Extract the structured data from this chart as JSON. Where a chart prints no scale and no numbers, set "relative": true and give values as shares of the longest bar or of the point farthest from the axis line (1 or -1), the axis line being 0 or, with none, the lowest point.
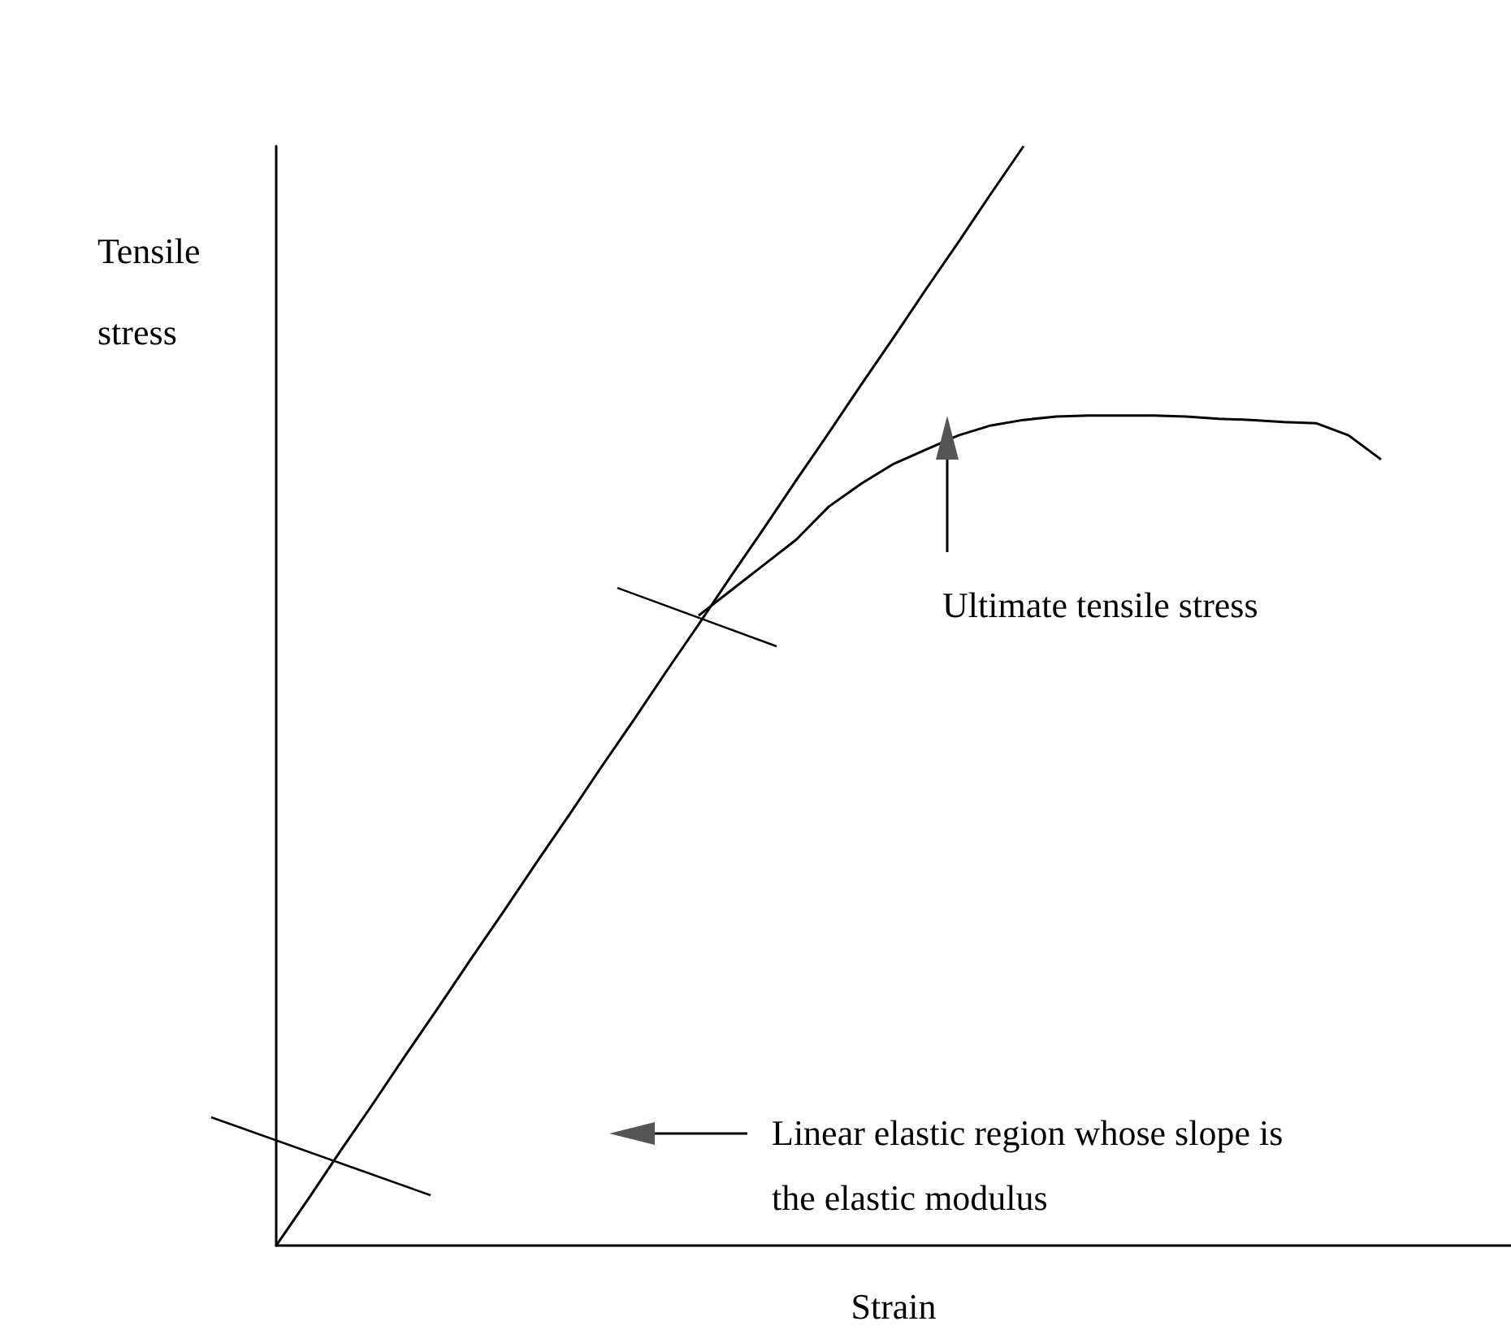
{
  "chart_data": {
    "type": "line",
    "relative": true,
    "xlabel": "Strain",
    "ylabel": "Tensile stress",
    "annotations": [
      "Ultimate tensile stress",
      "Linear elastic region whose slope is the elastic modulus"
    ],
    "categories": [
      null,
      null,
      null,
      null,
      null,
      null,
      null,
      null,
      null,
      null,
      null,
      null,
      null,
      null,
      null,
      null,
      null,
      null,
      null,
      null,
      null,
      null,
      null,
      null,
      null,
      null,
      null,
      null,
      null,
      null,
      null,
      null,
      null,
      null,
      null,
      null,
      null,
      null,
      null
    ],
    "marker": "none",
    "line_style": "solid",
    "grid": false,
    "tick_labels": false,
    "series": [
      {
        "color": "#000000",
        "values": [
          0,
          0.043,
          0.087,
          0.13,
          0.174,
          0.217,
          0.261,
          0.304,
          0.348,
          0.391,
          0.435,
          0.478,
          0.522,
          0.565,
          0.609,
          0.652,
          0.696,
          0.739,
          0.783,
          0.826,
          0.87,
          0.913,
          0.957,
          1.0,
          null,
          null,
          null,
          null,
          null,
          null,
          null,
          null,
          null,
          null,
          null,
          null,
          null,
          null,
          null
        ]
      },
      {
        "color": "#000000",
        "values": [
          null,
          null,
          null,
          null,
          null,
          null,
          null,
          null,
          null,
          null,
          null,
          null,
          null,
          0.573,
          0.596,
          0.619,
          0.642,
          0.672,
          0.693,
          0.711,
          0.724,
          0.737,
          0.746,
          0.751,
          0.754,
          0.755,
          0.755,
          0.755,
          0.754,
          0.752,
          0.751,
          0.749,
          0.748,
          0.737,
          0.715,
          null,
          null,
          null,
          null
        ]
      }
    ]
  }
}
